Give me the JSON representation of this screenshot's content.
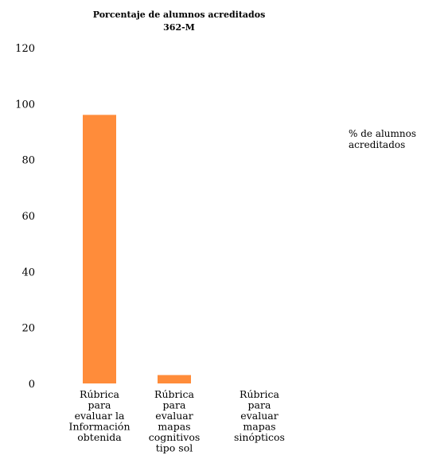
{
  "chart_data": {
    "type": "bar",
    "title": "Porcentaje de alumnos acreditados",
    "subtitle": "362-M",
    "categories": [
      "Rúbrica para evaluar la Información obtenida",
      "Rúbrica para evaluar mapas cognitivos tipo sol",
      "Rúbrica para evaluar mapas sinópticos"
    ],
    "category_lines": [
      [
        "Rúbrica",
        "para",
        "evaluar la",
        "Información",
        "obtenida"
      ],
      [
        "Rúbrica",
        "para",
        "evaluar",
        "mapas",
        "cognitivos",
        "tipo sol"
      ],
      [
        "Rúbrica",
        "para",
        "evaluar",
        "mapas",
        "sinópticos"
      ]
    ],
    "series": [
      {
        "name": "% de alumnos acreditados",
        "values": [
          96,
          3,
          0
        ]
      }
    ],
    "legend_lines": [
      "% de alumnos",
      "acreditados"
    ],
    "legend_position": "right",
    "xlabel": "",
    "ylabel": "",
    "ylim": [
      0,
      120
    ],
    "yticks": [
      "0",
      "20",
      "40",
      "60",
      "80",
      "100",
      "120"
    ],
    "grid": false,
    "bar_color": "#FF8C3A"
  }
}
